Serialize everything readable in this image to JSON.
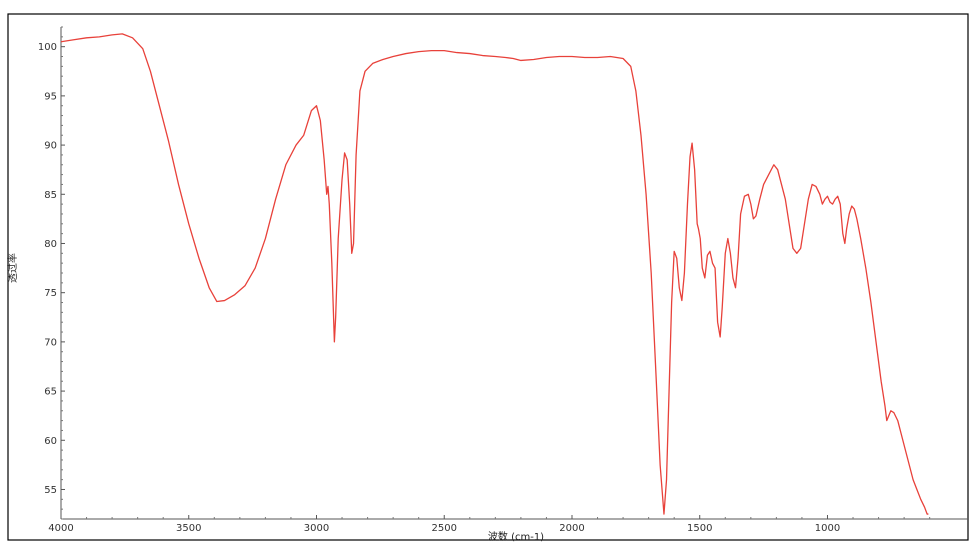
{
  "chart_data": {
    "type": "line",
    "title": "",
    "xlabel": "波数 (cm-1)",
    "ylabel": "透过率",
    "x_reversed": true,
    "xlim": [
      4000,
      450
    ],
    "ylim": [
      52,
      102
    ],
    "x_ticks": [
      4000,
      3500,
      3000,
      2500,
      2000,
      1500,
      1000
    ],
    "y_ticks": [
      55,
      60,
      65,
      70,
      75,
      80,
      85,
      90,
      95,
      100
    ],
    "grid": false,
    "legend": "none",
    "series": [
      {
        "color": "#e8413a",
        "points": [
          [
            4000,
            100.5
          ],
          [
            3950,
            100.7
          ],
          [
            3900,
            100.9
          ],
          [
            3850,
            101.0
          ],
          [
            3800,
            101.2
          ],
          [
            3760,
            101.3
          ],
          [
            3720,
            100.9
          ],
          [
            3680,
            99.8
          ],
          [
            3650,
            97.5
          ],
          [
            3620,
            94.5
          ],
          [
            3580,
            90.5
          ],
          [
            3540,
            86.0
          ],
          [
            3500,
            82.0
          ],
          [
            3460,
            78.5
          ],
          [
            3420,
            75.5
          ],
          [
            3390,
            74.1
          ],
          [
            3360,
            74.2
          ],
          [
            3320,
            74.8
          ],
          [
            3280,
            75.7
          ],
          [
            3240,
            77.5
          ],
          [
            3200,
            80.5
          ],
          [
            3160,
            84.5
          ],
          [
            3120,
            88.0
          ],
          [
            3080,
            90.0
          ],
          [
            3050,
            91.0
          ],
          [
            3020,
            93.5
          ],
          [
            3000,
            94.0
          ],
          [
            2985,
            92.5
          ],
          [
            2970,
            88.5
          ],
          [
            2960,
            85.0
          ],
          [
            2955,
            85.8
          ],
          [
            2950,
            84.0
          ],
          [
            2940,
            78.0
          ],
          [
            2930,
            70.0
          ],
          [
            2925,
            72.5
          ],
          [
            2915,
            80.5
          ],
          [
            2900,
            86.5
          ],
          [
            2890,
            89.2
          ],
          [
            2880,
            88.5
          ],
          [
            2870,
            84.0
          ],
          [
            2862,
            79.0
          ],
          [
            2855,
            80.0
          ],
          [
            2845,
            89.0
          ],
          [
            2830,
            95.5
          ],
          [
            2810,
            97.5
          ],
          [
            2780,
            98.3
          ],
          [
            2740,
            98.7
          ],
          [
            2700,
            99.0
          ],
          [
            2650,
            99.3
          ],
          [
            2600,
            99.5
          ],
          [
            2550,
            99.6
          ],
          [
            2500,
            99.6
          ],
          [
            2450,
            99.4
          ],
          [
            2400,
            99.3
          ],
          [
            2350,
            99.1
          ],
          [
            2300,
            99.0
          ],
          [
            2260,
            98.9
          ],
          [
            2230,
            98.8
          ],
          [
            2200,
            98.6
          ],
          [
            2150,
            98.7
          ],
          [
            2100,
            98.9
          ],
          [
            2050,
            99.0
          ],
          [
            2000,
            99.0
          ],
          [
            1950,
            98.9
          ],
          [
            1900,
            98.9
          ],
          [
            1850,
            99.0
          ],
          [
            1800,
            98.8
          ],
          [
            1770,
            98.0
          ],
          [
            1750,
            95.5
          ],
          [
            1730,
            91.0
          ],
          [
            1710,
            85.0
          ],
          [
            1690,
            77.0
          ],
          [
            1670,
            66.0
          ],
          [
            1655,
            57.5
          ],
          [
            1640,
            52.5
          ],
          [
            1630,
            56.0
          ],
          [
            1620,
            65.0
          ],
          [
            1610,
            74.0
          ],
          [
            1600,
            79.2
          ],
          [
            1590,
            78.5
          ],
          [
            1580,
            75.5
          ],
          [
            1570,
            74.2
          ],
          [
            1560,
            77.0
          ],
          [
            1548,
            84.0
          ],
          [
            1538,
            88.8
          ],
          [
            1530,
            90.2
          ],
          [
            1520,
            87.5
          ],
          [
            1510,
            82.0
          ],
          [
            1505,
            81.5
          ],
          [
            1498,
            80.5
          ],
          [
            1490,
            77.5
          ],
          [
            1480,
            76.5
          ],
          [
            1470,
            78.8
          ],
          [
            1460,
            79.2
          ],
          [
            1450,
            78.0
          ],
          [
            1440,
            77.5
          ],
          [
            1430,
            72.0
          ],
          [
            1420,
            70.5
          ],
          [
            1412,
            73.5
          ],
          [
            1400,
            79.0
          ],
          [
            1390,
            80.5
          ],
          [
            1380,
            79.0
          ],
          [
            1370,
            76.5
          ],
          [
            1360,
            75.5
          ],
          [
            1350,
            78.5
          ],
          [
            1340,
            83.0
          ],
          [
            1325,
            84.8
          ],
          [
            1310,
            85.0
          ],
          [
            1300,
            84.0
          ],
          [
            1290,
            82.5
          ],
          [
            1280,
            82.8
          ],
          [
            1265,
            84.5
          ],
          [
            1250,
            86.0
          ],
          [
            1230,
            87.0
          ],
          [
            1210,
            88.0
          ],
          [
            1195,
            87.5
          ],
          [
            1180,
            86.0
          ],
          [
            1165,
            84.5
          ],
          [
            1150,
            82.0
          ],
          [
            1135,
            79.5
          ],
          [
            1120,
            79.0
          ],
          [
            1105,
            79.5
          ],
          [
            1090,
            82.0
          ],
          [
            1075,
            84.5
          ],
          [
            1060,
            86.0
          ],
          [
            1045,
            85.8
          ],
          [
            1030,
            85.0
          ],
          [
            1020,
            84.0
          ],
          [
            1010,
            84.5
          ],
          [
            1000,
            84.8
          ],
          [
            990,
            84.2
          ],
          [
            980,
            84.0
          ],
          [
            970,
            84.5
          ],
          [
            960,
            84.8
          ],
          [
            950,
            84.0
          ],
          [
            940,
            81.0
          ],
          [
            932,
            80.0
          ],
          [
            925,
            81.5
          ],
          [
            915,
            83.0
          ],
          [
            905,
            83.8
          ],
          [
            895,
            83.5
          ],
          [
            885,
            82.5
          ],
          [
            870,
            80.5
          ],
          [
            850,
            77.5
          ],
          [
            830,
            74.0
          ],
          [
            810,
            70.0
          ],
          [
            790,
            66.0
          ],
          [
            775,
            63.5
          ],
          [
            768,
            62.0
          ],
          [
            760,
            62.5
          ],
          [
            752,
            63.0
          ],
          [
            740,
            62.8
          ],
          [
            725,
            62.0
          ],
          [
            710,
            60.5
          ],
          [
            695,
            59.0
          ],
          [
            680,
            57.5
          ],
          [
            665,
            56.0
          ],
          [
            650,
            55.0
          ],
          [
            635,
            54.0
          ],
          [
            620,
            53.2
          ],
          [
            610,
            52.5
          ],
          [
            605,
            52.5
          ]
        ]
      }
    ]
  }
}
